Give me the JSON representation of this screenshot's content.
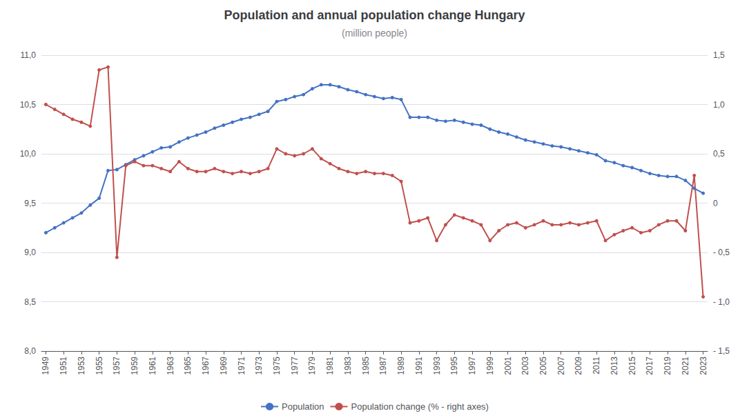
{
  "chart_data": {
    "type": "line",
    "title": "Population and annual population change Hungary",
    "subtitle": "(million people)",
    "x": [
      1949,
      1950,
      1951,
      1952,
      1953,
      1954,
      1955,
      1956,
      1957,
      1958,
      1959,
      1960,
      1961,
      1962,
      1963,
      1964,
      1965,
      1966,
      1967,
      1968,
      1969,
      1970,
      1971,
      1972,
      1973,
      1974,
      1975,
      1976,
      1977,
      1978,
      1979,
      1980,
      1981,
      1982,
      1983,
      1984,
      1985,
      1986,
      1987,
      1988,
      1989,
      1990,
      1991,
      1992,
      1993,
      1994,
      1995,
      1996,
      1997,
      1998,
      1999,
      2000,
      2001,
      2002,
      2003,
      2004,
      2005,
      2006,
      2007,
      2008,
      2009,
      2010,
      2011,
      2012,
      2013,
      2014,
      2015,
      2016,
      2017,
      2018,
      2019,
      2020,
      2021,
      2022,
      2023
    ],
    "series": [
      {
        "name": "Population",
        "color": "#4472c4",
        "marker": "circle",
        "values": [
          9.2,
          9.25,
          9.3,
          9.35,
          9.4,
          9.48,
          9.55,
          9.83,
          9.84,
          9.89,
          9.94,
          9.98,
          10.02,
          10.06,
          10.07,
          10.12,
          10.16,
          10.19,
          10.22,
          10.26,
          10.29,
          10.32,
          10.35,
          10.37,
          10.4,
          10.43,
          10.53,
          10.55,
          10.58,
          10.6,
          10.66,
          10.7,
          10.7,
          10.68,
          10.65,
          10.63,
          10.6,
          10.58,
          10.56,
          10.57,
          10.55,
          10.37,
          10.37,
          10.37,
          10.34,
          10.33,
          10.34,
          10.32,
          10.3,
          10.29,
          10.25,
          10.22,
          10.2,
          10.17,
          10.14,
          10.12,
          10.1,
          10.08,
          10.07,
          10.05,
          10.03,
          10.01,
          9.99,
          9.93,
          9.91,
          9.88,
          9.86,
          9.83,
          9.8,
          9.78,
          9.77,
          9.77,
          9.73,
          9.65,
          9.6
        ]
      },
      {
        "name": "Population change (% - right axes)",
        "color": "#c0504d",
        "marker": "circle",
        "axis": "y2",
        "values": [
          1.0,
          0.95,
          0.9,
          0.85,
          0.82,
          0.78,
          1.35,
          1.38,
          -0.55,
          0.38,
          0.42,
          0.38,
          0.38,
          0.35,
          0.32,
          0.42,
          0.35,
          0.32,
          0.32,
          0.35,
          0.32,
          0.3,
          0.32,
          0.3,
          0.32,
          0.35,
          0.55,
          0.5,
          0.48,
          0.5,
          0.55,
          0.45,
          0.4,
          0.35,
          0.32,
          0.3,
          0.32,
          0.3,
          0.3,
          0.28,
          0.22,
          -0.2,
          -0.18,
          -0.15,
          -0.38,
          -0.22,
          -0.12,
          -0.15,
          -0.18,
          -0.22,
          -0.38,
          -0.28,
          -0.22,
          -0.2,
          -0.25,
          -0.22,
          -0.18,
          -0.22,
          -0.22,
          -0.2,
          -0.22,
          -0.2,
          -0.18,
          -0.38,
          -0.32,
          -0.28,
          -0.25,
          -0.3,
          -0.28,
          -0.22,
          -0.18,
          -0.18,
          -0.28,
          0.28,
          -0.95
        ]
      }
    ],
    "xlim": [
      1948.5,
      2023.5
    ],
    "xticks": [
      1949,
      1951,
      1953,
      1955,
      1957,
      1959,
      1961,
      1963,
      1965,
      1967,
      1969,
      1971,
      1973,
      1975,
      1977,
      1979,
      1981,
      1983,
      1985,
      1987,
      1989,
      1991,
      1993,
      1995,
      1997,
      1999,
      2001,
      2003,
      2005,
      2007,
      2009,
      2011,
      2013,
      2015,
      2017,
      2019,
      2021,
      2023
    ],
    "ylim": [
      8.0,
      11.0
    ],
    "yticks": [
      {
        "value": 8.0,
        "label": "8,0"
      },
      {
        "value": 8.5,
        "label": "8,5"
      },
      {
        "value": 9.0,
        "label": "9,0"
      },
      {
        "value": 9.5,
        "label": "9,5"
      },
      {
        "value": 10.0,
        "label": "10,0"
      },
      {
        "value": 10.5,
        "label": "10,5"
      },
      {
        "value": 11.0,
        "label": "11,0"
      }
    ],
    "y2lim": [
      -1.5,
      1.5
    ],
    "y2ticks": [
      {
        "value": -1.5,
        "label": "- 1,5"
      },
      {
        "value": -1.0,
        "label": "- 1,0"
      },
      {
        "value": -0.5,
        "label": "- 0,5"
      },
      0,
      {
        "value": 0.5,
        "label": "0,5"
      },
      {
        "value": 1.0,
        "label": "1,0"
      },
      {
        "value": 1.5,
        "label": "1,5"
      }
    ],
    "grid": true,
    "legend": "bottom"
  }
}
